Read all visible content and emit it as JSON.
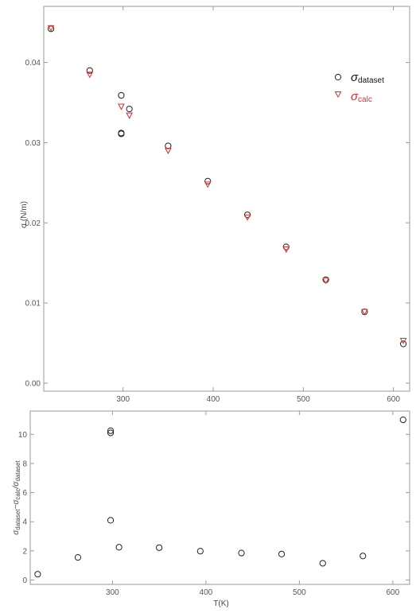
{
  "chart_data": [
    {
      "type": "scatter",
      "title": "",
      "xlabel": "",
      "ylabel": "σ (N/m)",
      "xlim": [
        212,
        618
      ],
      "ylim": [
        -0.001,
        0.047
      ],
      "x_ticks": [
        300,
        400,
        500,
        600
      ],
      "y_ticks": [
        "0.00",
        "0.01",
        "0.02",
        "0.03",
        "0.04"
      ],
      "grid": false,
      "legend_position": "top-right",
      "legend": [
        {
          "symbol": "σ",
          "subscript": "dataset",
          "color": "#222222",
          "marker": "circle"
        },
        {
          "symbol": "σ",
          "subscript": "calc",
          "color": "#d62d2d",
          "marker": "triangle-down"
        }
      ],
      "series": [
        {
          "name": "σdataset",
          "color": "#222222",
          "marker": "circle",
          "points": [
            {
              "x": 220,
              "y": 0.0442
            },
            {
              "x": 263,
              "y": 0.039
            },
            {
              "x": 298,
              "y": 0.0359
            },
            {
              "x": 298,
              "y": 0.0312
            },
            {
              "x": 298,
              "y": 0.0311
            },
            {
              "x": 307,
              "y": 0.0342
            },
            {
              "x": 350,
              "y": 0.0296
            },
            {
              "x": 394,
              "y": 0.0252
            },
            {
              "x": 438,
              "y": 0.021
            },
            {
              "x": 481,
              "y": 0.017
            },
            {
              "x": 525,
              "y": 0.0129
            },
            {
              "x": 568,
              "y": 0.0089
            },
            {
              "x": 611,
              "y": 0.0049
            }
          ]
        },
        {
          "name": "σcalc",
          "color": "#d62d2d",
          "marker": "triangle-down",
          "points": [
            {
              "x": 220,
              "y": 0.0443
            },
            {
              "x": 263,
              "y": 0.0385
            },
            {
              "x": 298,
              "y": 0.0345
            },
            {
              "x": 307,
              "y": 0.0334
            },
            {
              "x": 350,
              "y": 0.029
            },
            {
              "x": 394,
              "y": 0.0248
            },
            {
              "x": 438,
              "y": 0.0207
            },
            {
              "x": 481,
              "y": 0.0167
            },
            {
              "x": 525,
              "y": 0.0128
            },
            {
              "x": 568,
              "y": 0.0089
            },
            {
              "x": 611,
              "y": 0.0053
            }
          ]
        }
      ]
    },
    {
      "type": "scatter",
      "title": "",
      "xlabel": "T(K)",
      "ylabel": "σdataset−σcalc/σdataset",
      "ylabel_parts": {
        "sym1": "σ",
        "sub1": "dataset",
        "mid": "−σ",
        "sub2": "calc",
        "slash": "/σ",
        "sub3": "dataset"
      },
      "xlim": [
        212,
        618
      ],
      "ylim": [
        -0.3,
        11.6
      ],
      "x_ticks": [
        300,
        400,
        500,
        600
      ],
      "y_ticks": [
        0,
        2,
        4,
        6,
        8,
        10
      ],
      "grid": false,
      "series": [
        {
          "color": "#222222",
          "marker": "circle",
          "points": [
            {
              "x": 220,
              "y": 0.4
            },
            {
              "x": 263,
              "y": 1.55
            },
            {
              "x": 298,
              "y": 10.25
            },
            {
              "x": 298,
              "y": 10.1
            },
            {
              "x": 298,
              "y": 4.1
            },
            {
              "x": 307,
              "y": 2.25
            },
            {
              "x": 350,
              "y": 2.22
            },
            {
              "x": 394,
              "y": 1.98
            },
            {
              "x": 438,
              "y": 1.85
            },
            {
              "x": 481,
              "y": 1.78
            },
            {
              "x": 525,
              "y": 1.15
            },
            {
              "x": 568,
              "y": 1.65
            },
            {
              "x": 611,
              "y": 11.0
            }
          ]
        }
      ]
    }
  ]
}
